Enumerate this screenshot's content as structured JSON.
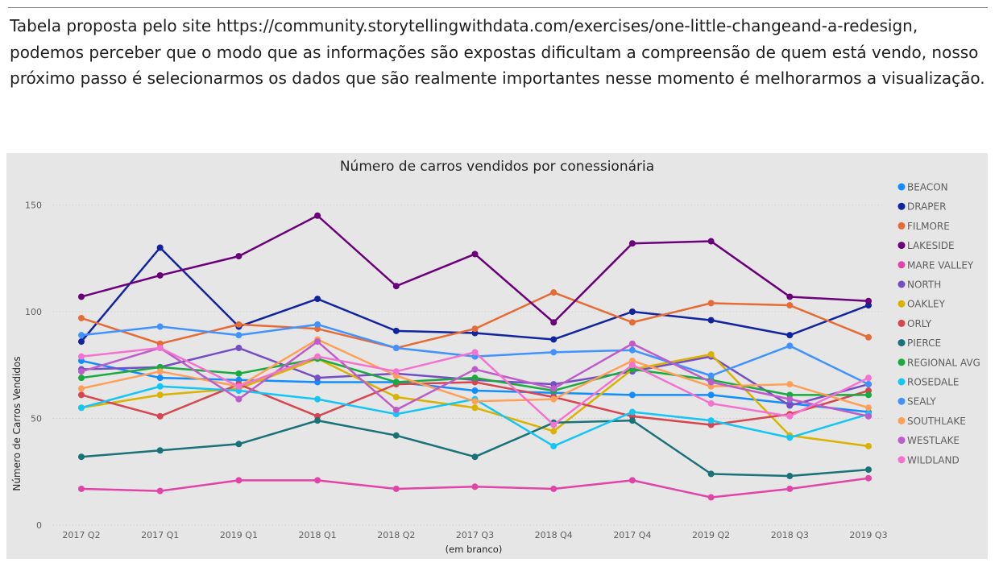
{
  "intro": {
    "lines": [
      "Tabela proposta pelo site https://community.storytellingwithdata.com/exercises/one-little-changeand-a-redesign,",
      "podemos perceber que o modo que as informações são expostas dificultam a compreensão de quem está vendo, nosso",
      "próximo passo é selecionarmos os dados que são realmente importantes nesse momento é melhorarmos a visualização."
    ]
  },
  "chart_data": {
    "type": "line",
    "title": "Número de carros vendidos por conessionária",
    "xlabel": "(em branco)",
    "ylabel": "Número de Carros Vendidos",
    "categories": [
      "2017 Q2",
      "2017 Q1",
      "2019 Q1",
      "2018 Q1",
      "2018 Q2",
      "2017 Q3",
      "2018 Q4",
      "2017 Q4",
      "2019 Q2",
      "2018 Q3",
      "2019 Q3"
    ],
    "yticks": [
      0,
      50,
      100,
      150
    ],
    "ylim": [
      0,
      160
    ],
    "grid": "horizontal dotted",
    "legend_position": "right",
    "series": [
      {
        "name": "BEACON",
        "color": "#118DFF",
        "values": [
          77,
          69,
          68,
          67,
          67,
          63,
          62,
          61,
          61,
          57,
          53
        ]
      },
      {
        "name": "DRAPER",
        "color": "#12239E",
        "values": [
          86,
          130,
          93,
          106,
          91,
          90,
          87,
          100,
          96,
          89,
          103
        ]
      },
      {
        "name": "FILMORE",
        "color": "#E66C37",
        "values": [
          97,
          85,
          94,
          92,
          83,
          92,
          109,
          95,
          104,
          103,
          88
        ]
      },
      {
        "name": "LAKESIDE",
        "color": "#6B007B",
        "values": [
          107,
          117,
          126,
          145,
          112,
          127,
          95,
          132,
          133,
          107,
          105
        ]
      },
      {
        "name": "MARE VALLEY",
        "color": "#E044A7",
        "values": [
          17,
          16,
          21,
          21,
          17,
          18,
          17,
          21,
          13,
          17,
          22
        ]
      },
      {
        "name": "NORTH",
        "color": "#744EC2",
        "values": [
          73,
          74,
          83,
          69,
          71,
          68,
          66,
          72,
          79,
          56,
          66
        ]
      },
      {
        "name": "OAKLEY",
        "color": "#D9B300",
        "values": [
          55,
          61,
          64,
          78,
          60,
          55,
          44,
          73,
          80,
          42,
          37
        ]
      },
      {
        "name": "ORLY",
        "color": "#D64550",
        "values": [
          61,
          51,
          66,
          51,
          66,
          67,
          60,
          51,
          47,
          52,
          63
        ]
      },
      {
        "name": "PIERCE",
        "color": "#197278",
        "values": [
          32,
          35,
          38,
          49,
          42,
          32,
          48,
          49,
          24,
          23,
          26
        ]
      },
      {
        "name": "REGIONAL AVG",
        "color": "#1AAB40",
        "values": [
          69,
          74,
          71,
          78,
          67,
          69,
          63,
          73,
          68,
          61,
          61
        ]
      },
      {
        "name": "ROSEDALE",
        "color": "#15C6F4",
        "values": [
          55,
          65,
          63,
          59,
          52,
          59,
          37,
          53,
          49,
          41,
          52
        ]
      },
      {
        "name": "SEALY",
        "color": "#4092FF",
        "values": [
          89,
          93,
          89,
          94,
          83,
          79,
          81,
          82,
          70,
          84,
          66
        ]
      },
      {
        "name": "SOUTHLAKE",
        "color": "#FFA058",
        "values": [
          64,
          72,
          65,
          87,
          70,
          58,
          59,
          77,
          65,
          66,
          55
        ]
      },
      {
        "name": "WESTLAKE",
        "color": "#BE5DC9",
        "values": [
          72,
          83,
          59,
          86,
          54,
          73,
          64,
          85,
          67,
          59,
          51
        ]
      },
      {
        "name": "WILDLAND",
        "color": "#F472D0",
        "values": [
          79,
          83,
          65,
          79,
          72,
          81,
          47,
          75,
          57,
          51,
          69
        ]
      }
    ]
  }
}
